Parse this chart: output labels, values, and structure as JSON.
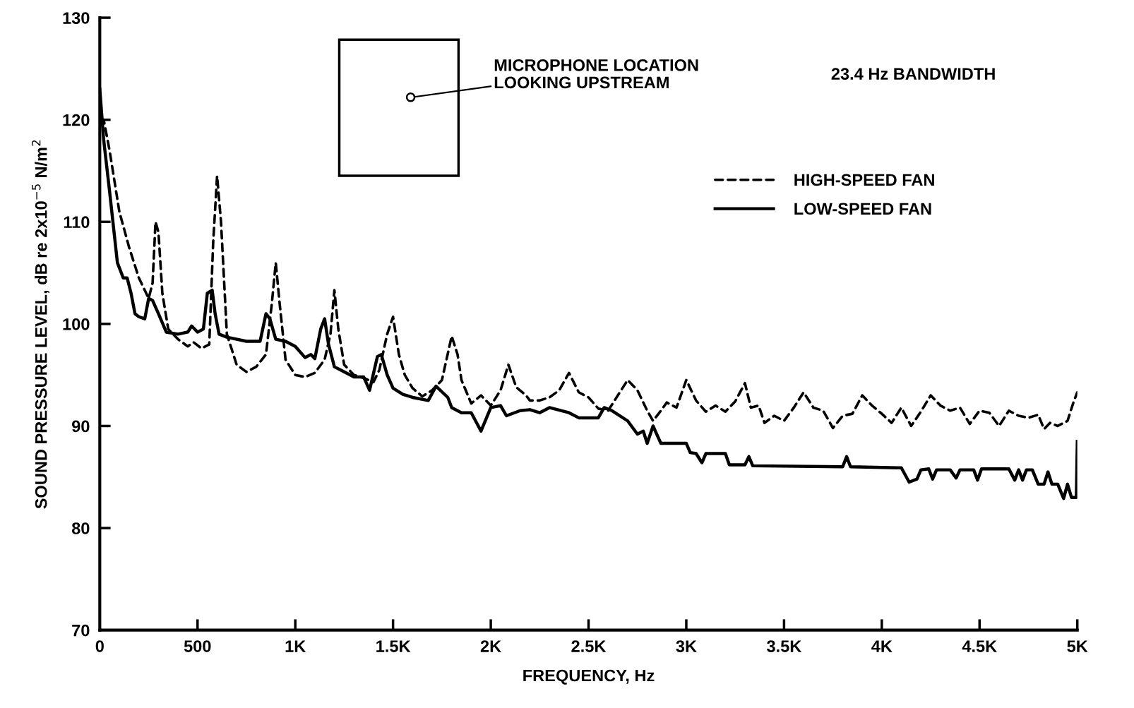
{
  "chart_data": {
    "type": "line",
    "xlabel": "FREQUENCY, Hz",
    "ylabel": "SOUND PRESSURE LEVEL, dB re 2x10$^{−5}$ N/m$^{2}$",
    "annotations": [
      "MICROPHONE LOCATION\nLOOKING UPSTREAM",
      "23.4 Hz BANDWIDTH"
    ],
    "xlim": [
      0,
      5000
    ],
    "xticks": [
      0,
      500,
      {
        "value": 1000,
        "label": "1K"
      },
      {
        "value": 1500,
        "label": "1.5K"
      },
      {
        "value": 2000,
        "label": "2K"
      },
      {
        "value": 2500,
        "label": "2.5K"
      },
      {
        "value": 3000,
        "label": "3K"
      },
      {
        "value": 3500,
        "label": "3.5K"
      },
      {
        "value": 4000,
        "label": "4K"
      },
      {
        "value": 4500,
        "label": "4.5K"
      },
      {
        "value": 5000,
        "label": "5K"
      }
    ],
    "ylim": [
      70,
      130
    ],
    "yticks": [
      70,
      80,
      90,
      100,
      110,
      120,
      130
    ],
    "grid": false,
    "legend": "top right",
    "series": [
      {
        "name": "HIGH-SPEED FAN",
        "color": "#000000",
        "line_style": "dashed",
        "x": [
          0,
          20,
          50,
          100,
          150,
          200,
          250,
          270,
          285,
          300,
          320,
          350,
          400,
          450,
          480,
          520,
          560,
          580,
          600,
          620,
          650,
          700,
          750,
          800,
          850,
          880,
          900,
          920,
          950,
          1000,
          1050,
          1100,
          1150,
          1180,
          1200,
          1220,
          1250,
          1300,
          1350,
          1400,
          1430,
          1470,
          1500,
          1530,
          1560,
          1600,
          1650,
          1700,
          1750,
          1800,
          1830,
          1850,
          1900,
          1950,
          2000,
          2050,
          2090,
          2130,
          2180,
          2200,
          2250,
          2300,
          2350,
          2400,
          2450,
          2500,
          2550,
          2600,
          2650,
          2700,
          2750,
          2800,
          2830,
          2870,
          2900,
          2950,
          3000,
          3050,
          3100,
          3150,
          3200,
          3250,
          3300,
          3330,
          3370,
          3400,
          3450,
          3500,
          3550,
          3600,
          3650,
          3700,
          3750,
          3800,
          3850,
          3900,
          3950,
          4000,
          4050,
          4100,
          4150,
          4200,
          4250,
          4300,
          4350,
          4400,
          4450,
          4500,
          4550,
          4600,
          4650,
          4700,
          4750,
          4800,
          4830,
          4860,
          4900,
          4950,
          4980,
          5000
        ],
        "values": [
          120,
          120,
          117,
          111,
          107.5,
          104.5,
          102.5,
          104,
          110,
          109,
          103,
          99.5,
          98.5,
          97.8,
          98.2,
          97.6,
          98,
          108,
          114.5,
          110,
          99,
          96,
          95.3,
          95.8,
          97,
          102,
          106,
          102,
          96.5,
          95,
          94.8,
          95.2,
          96.5,
          99,
          103.3,
          99.5,
          96,
          95,
          94.7,
          94.3,
          95.5,
          99,
          100.7,
          97,
          95,
          93.7,
          92.9,
          93.5,
          94.5,
          98.8,
          97,
          94.5,
          92.2,
          93,
          92,
          93.5,
          96,
          93.8,
          93,
          92.5,
          92.5,
          92.8,
          93.5,
          95.2,
          93.3,
          92.8,
          91.7,
          91.5,
          93,
          94.5,
          93.5,
          91.5,
          90.5,
          91.5,
          92.3,
          91.8,
          94.5,
          92.5,
          91.4,
          92,
          91.4,
          92.4,
          94.2,
          91.8,
          92,
          90.3,
          91,
          90.5,
          91.8,
          93.3,
          91.8,
          91.5,
          89.8,
          91,
          91.2,
          93,
          92,
          91.2,
          90.3,
          91.8,
          90,
          91.4,
          93,
          92,
          91.5,
          91.8,
          90.2,
          91.5,
          91.3,
          90,
          91.5,
          91,
          90.8,
          91.1,
          89.7,
          90.3,
          90,
          90.5,
          92.3,
          93.3
        ]
      },
      {
        "name": "LOW-SPEED FAN",
        "color": "#000000",
        "line_style": "solid",
        "x": [
          0,
          20,
          50,
          90,
          120,
          140,
          160,
          180,
          200,
          230,
          250,
          270,
          300,
          340,
          400,
          450,
          470,
          500,
          530,
          550,
          575,
          590,
          610,
          650,
          750,
          820,
          850,
          870,
          900,
          950,
          1000,
          1050,
          1080,
          1100,
          1130,
          1150,
          1170,
          1200,
          1250,
          1300,
          1350,
          1380,
          1420,
          1440,
          1470,
          1500,
          1550,
          1600,
          1680,
          1720,
          1780,
          1800,
          1850,
          1900,
          1950,
          2000,
          2050,
          2080,
          2150,
          2200,
          2250,
          2300,
          2400,
          2450,
          2550,
          2580,
          2620,
          2700,
          2750,
          2780,
          2800,
          2830,
          2870,
          3000,
          3020,
          3050,
          3080,
          3100,
          3200,
          3220,
          3300,
          3320,
          3340,
          3800,
          3820,
          3840,
          4100,
          4140,
          4180,
          4200,
          4240,
          4260,
          4280,
          4350,
          4380,
          4400,
          4470,
          4490,
          4510,
          4650,
          4680,
          4700,
          4720,
          4740,
          4770,
          4800,
          4830,
          4850,
          4870,
          4900,
          4930,
          4950,
          4970,
          4995,
          5000
        ],
        "values": [
          123,
          118,
          113,
          106,
          104.5,
          104.5,
          103,
          101,
          100.7,
          100.5,
          102.5,
          102.3,
          101,
          99.2,
          99,
          99.2,
          99.8,
          99.2,
          99.5,
          103,
          103.3,
          101,
          99,
          98.7,
          98.3,
          98.3,
          101,
          100.5,
          98.5,
          98.3,
          97.8,
          96.7,
          97,
          96.6,
          99.5,
          100.5,
          98,
          95.8,
          95.3,
          94.8,
          94.8,
          93.5,
          96.8,
          97,
          95,
          93.7,
          93.1,
          92.8,
          92.5,
          93.9,
          92.8,
          91.8,
          91.3,
          91.3,
          89.5,
          91.8,
          92,
          91,
          91.5,
          91.6,
          91.3,
          91.8,
          91.3,
          90.8,
          90.8,
          91.8,
          91.5,
          90.5,
          89.2,
          89.5,
          88.3,
          90,
          88.3,
          88.3,
          87.4,
          87.3,
          86.4,
          87.3,
          87.3,
          86.2,
          86.2,
          87,
          86.1,
          86,
          87,
          86,
          85.9,
          84.5,
          84.8,
          85.7,
          85.8,
          84.8,
          85.7,
          85.7,
          84.9,
          85.7,
          85.7,
          84.7,
          85.8,
          85.8,
          84.7,
          85.7,
          84.7,
          85.7,
          85.7,
          84.3,
          84.3,
          85.5,
          84.3,
          84.3,
          82.9,
          84.3,
          83,
          83,
          88.5
        ]
      }
    ]
  }
}
